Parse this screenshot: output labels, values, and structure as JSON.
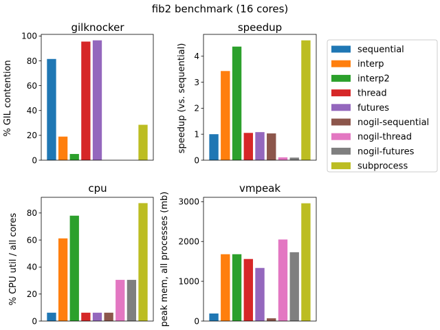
{
  "figure": {
    "suptitle": "fib2 benchmark (16 cores)"
  },
  "colors": [
    "#1f77b4",
    "#ff7f0e",
    "#2ca02c",
    "#d62728",
    "#9467bd",
    "#8c564b",
    "#e377c2",
    "#7f7f7f",
    "#bcbd22"
  ],
  "legend": {
    "location": "right",
    "entries": [
      "sequential",
      "interp",
      "interp2",
      "thread",
      "futures",
      "nogil-sequential",
      "nogil-thread",
      "nogil-futures",
      "subprocess"
    ]
  },
  "chart_data": [
    {
      "type": "bar",
      "title": "gilknocker",
      "ylabel": "% GIL contention",
      "categories": [
        "sequential",
        "interp",
        "interp2",
        "thread",
        "futures",
        "nogil-sequential",
        "nogil-thread",
        "nogil-futures",
        "subprocess"
      ],
      "values": [
        81.5,
        19,
        5,
        95.5,
        96.5,
        0,
        0,
        0,
        28.5
      ],
      "ylim": [
        0,
        101.3
      ],
      "yticks": [
        "0",
        "20",
        "40",
        "60",
        "80",
        "100"
      ],
      "grid": false
    },
    {
      "type": "bar",
      "title": "speedup",
      "ylabel": "speedup (vs. sequential)",
      "categories": [
        "sequential",
        "interp",
        "interp2",
        "thread",
        "futures",
        "nogil-sequential",
        "nogil-thread",
        "nogil-futures",
        "subprocess"
      ],
      "values": [
        1.0,
        3.43,
        4.37,
        1.05,
        1.08,
        1.03,
        0.11,
        0.1,
        4.61
      ],
      "ylim": [
        0,
        4.84
      ],
      "yticks": [
        "0",
        "1",
        "2",
        "3",
        "4"
      ],
      "grid": false
    },
    {
      "type": "bar",
      "title": "cpu",
      "ylabel": "% CPU util / all cores",
      "categories": [
        "sequential",
        "interp",
        "interp2",
        "thread",
        "futures",
        "nogil-sequential",
        "nogil-thread",
        "nogil-futures",
        "subprocess"
      ],
      "values": [
        6.2,
        61.2,
        78,
        6.2,
        6.2,
        6.2,
        30.5,
        30.5,
        87.3
      ],
      "ylim": [
        0,
        91.6
      ],
      "yticks": [
        "0",
        "20",
        "40",
        "60",
        "80"
      ],
      "grid": false
    },
    {
      "type": "bar",
      "title": "vmpeak",
      "ylabel": "peak mem, all processes (mb)",
      "categories": [
        "sequential",
        "interp",
        "interp2",
        "thread",
        "futures",
        "nogil-sequential",
        "nogil-thread",
        "nogil-futures",
        "subprocess"
      ],
      "values": [
        190,
        1680,
        1680,
        1560,
        1335,
        70,
        2050,
        1730,
        2960
      ],
      "ylim": [
        0,
        3110
      ],
      "yticks": [
        "0",
        "1000",
        "2000",
        "3000"
      ],
      "grid": false
    }
  ]
}
